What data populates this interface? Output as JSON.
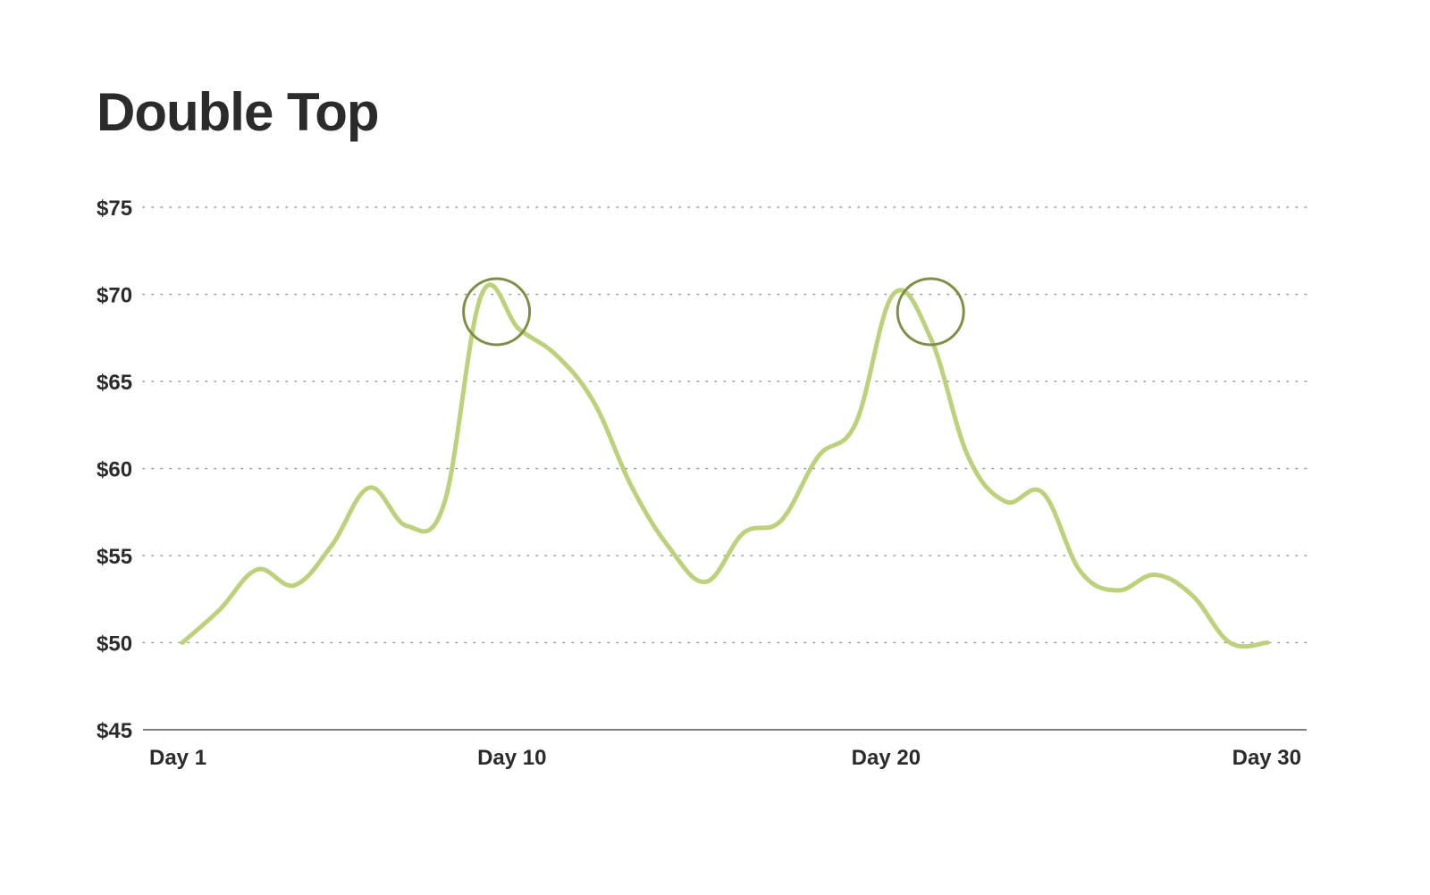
{
  "chart_data": {
    "type": "line",
    "title": "Double Top",
    "xlabel": "",
    "ylabel": "",
    "ylim": [
      45,
      75
    ],
    "xlim": [
      1,
      30
    ],
    "y_ticks": [
      {
        "value": 45,
        "label": "$45"
      },
      {
        "value": 50,
        "label": "$50"
      },
      {
        "value": 55,
        "label": "$55"
      },
      {
        "value": 60,
        "label": "$60"
      },
      {
        "value": 65,
        "label": "$65"
      },
      {
        "value": 70,
        "label": "$70"
      },
      {
        "value": 75,
        "label": "$75"
      }
    ],
    "x_ticks": [
      {
        "value": 1,
        "label": "Day 1"
      },
      {
        "value": 10,
        "label": "Day 10"
      },
      {
        "value": 20,
        "label": "Day 20"
      },
      {
        "value": 30,
        "label": "Day 30"
      }
    ],
    "grid": "horizontal dotted",
    "series": [
      {
        "color": "#bcd27a",
        "x": [
          1,
          2,
          3,
          4,
          5,
          6,
          7,
          8,
          9,
          10,
          11,
          12,
          13,
          14,
          15,
          16,
          17,
          18,
          19,
          20,
          21,
          22,
          23,
          24,
          25,
          26,
          27,
          28,
          29,
          30
        ],
        "y": [
          50,
          51.9,
          54.2,
          53.3,
          55.6,
          58.9,
          56.7,
          58.0,
          70.0,
          68.0,
          66.5,
          63.8,
          59.0,
          55.5,
          53.5,
          56.3,
          57.0,
          60.7,
          62.6,
          70.0,
          67.5,
          60.7,
          58.1,
          58.6,
          54.1,
          53.0,
          53.9,
          52.7,
          50.0,
          50.0
        ]
      }
    ],
    "highlights": [
      {
        "x": 9.4,
        "y": 69.0,
        "label": "first peak",
        "color": "#7d8e45"
      },
      {
        "x": 21.0,
        "y": 69.0,
        "label": "second peak",
        "color": "#7d8e45"
      }
    ],
    "colors": {
      "line": "#bcd27a",
      "highlight": "#7d8e45",
      "grid": "#9a9a9a",
      "axis": "#555555",
      "text": "#2b2b2b"
    }
  }
}
